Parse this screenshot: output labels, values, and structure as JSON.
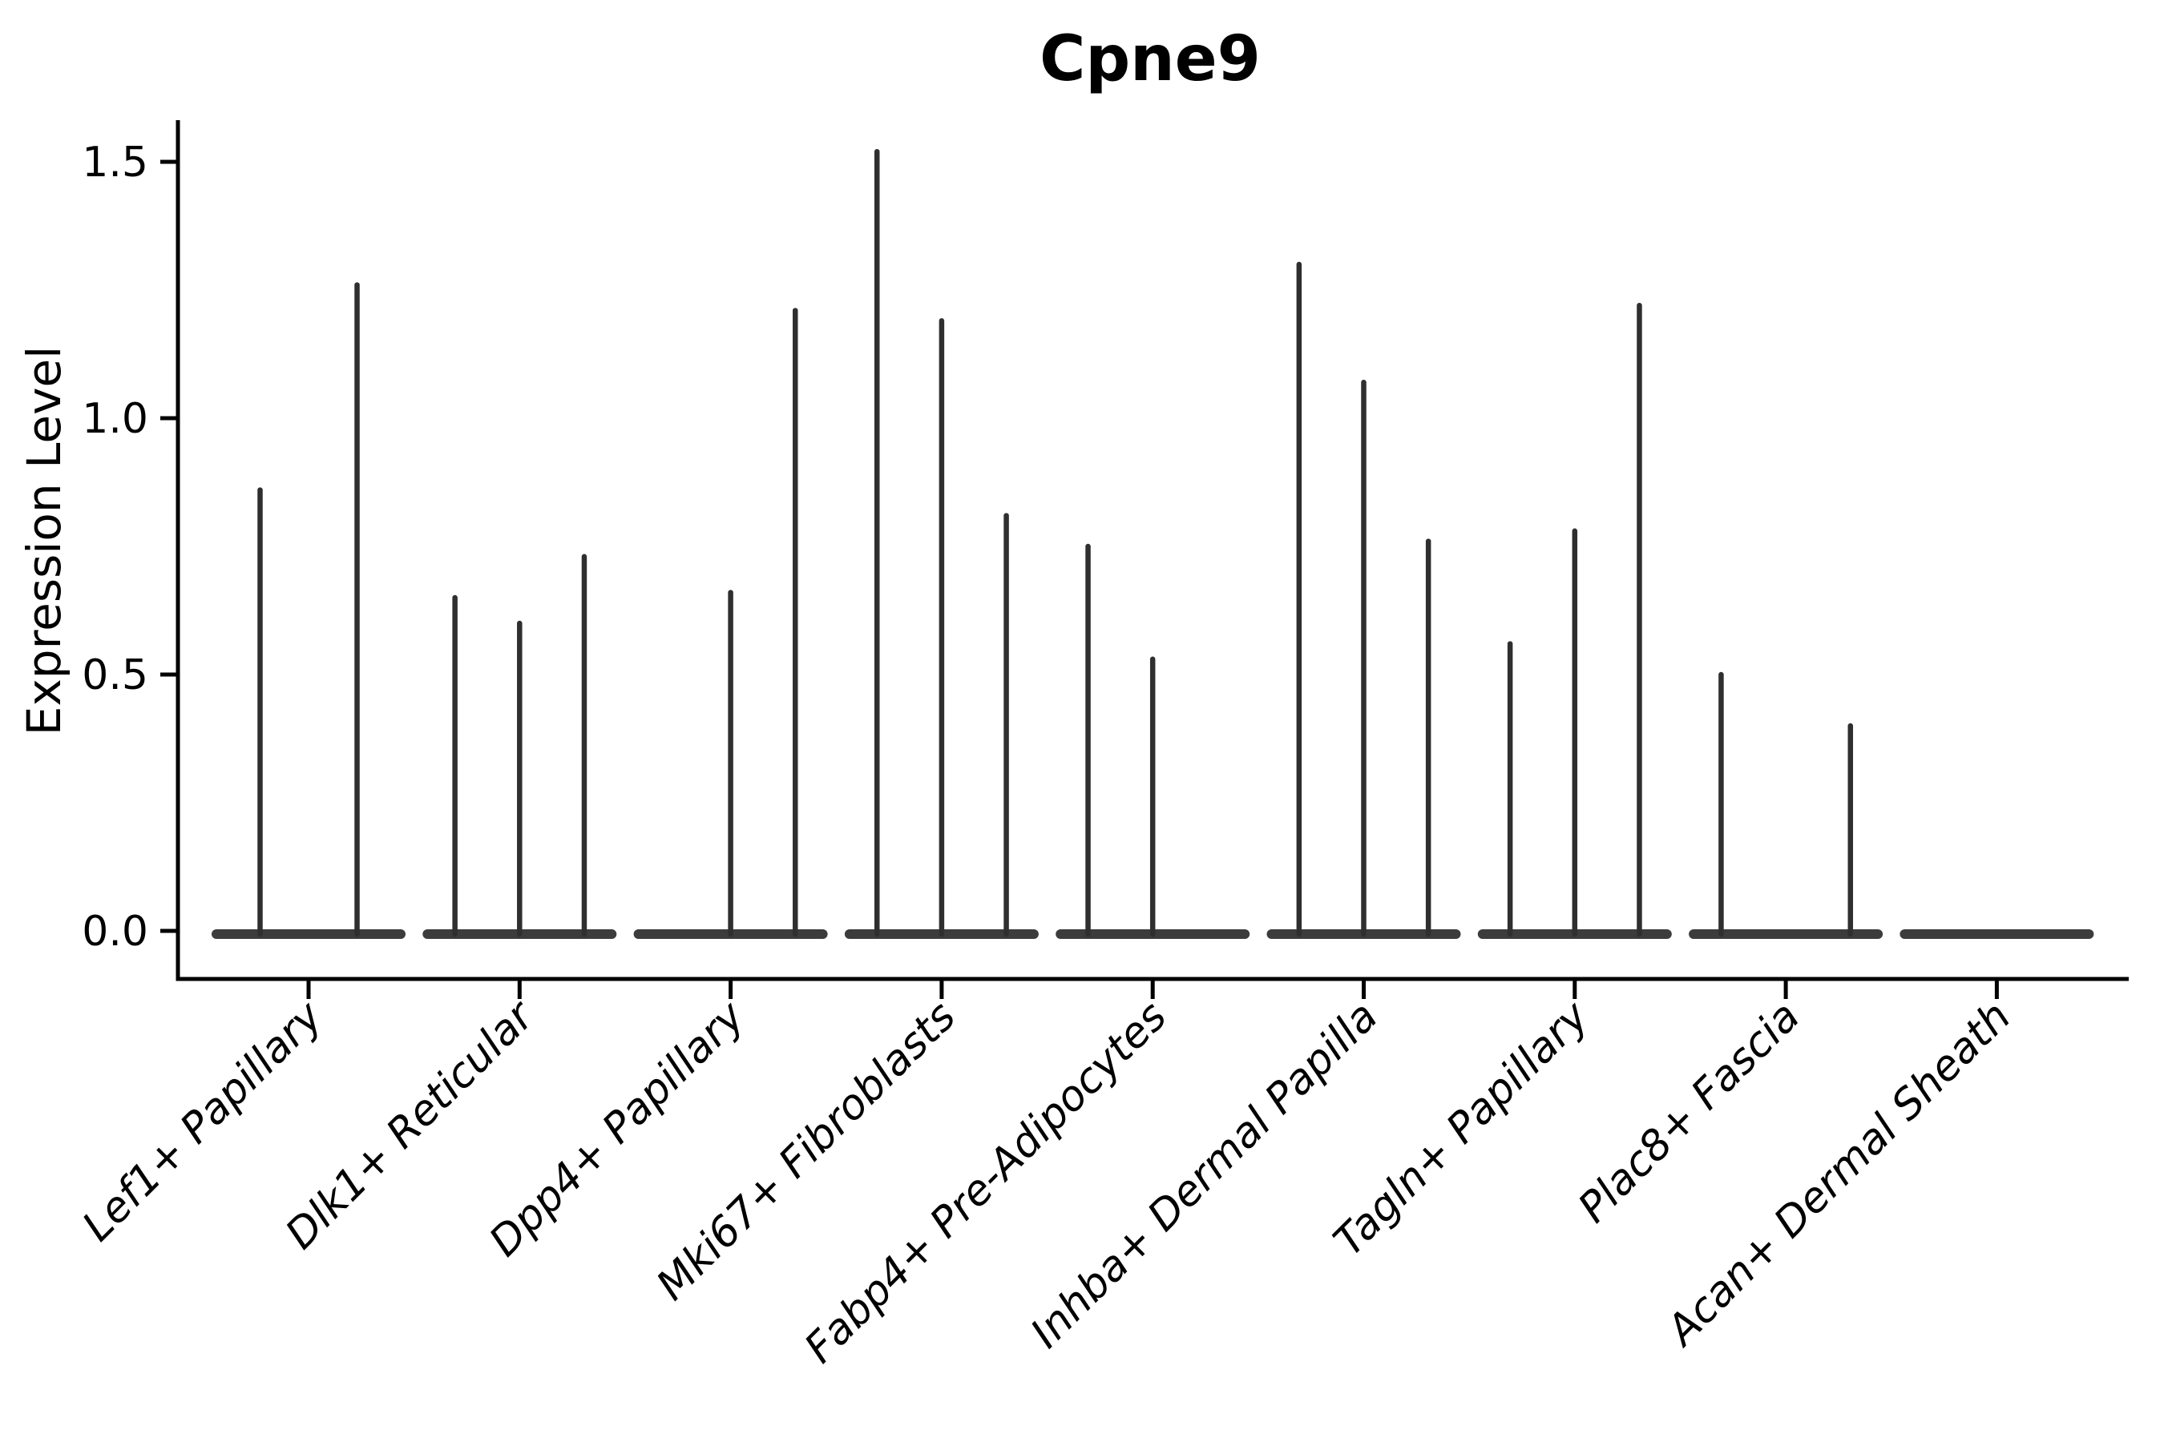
{
  "figure": {
    "background": "#ffffff"
  },
  "colors": {
    "violin_fill": "#3c3c3c",
    "spike": "#2f2f2f",
    "axis": "#000000",
    "text": "#000000"
  },
  "chart_data": {
    "type": "violin",
    "title": "Cpne9",
    "xlabel": "",
    "ylabel": "Expression Level",
    "ylim": [
      0,
      1.58
    ],
    "yticks": [
      0.0,
      0.5,
      1.0,
      1.5
    ],
    "yticklabels": [
      "0.0",
      "0.5",
      "1.0",
      "1.5"
    ],
    "grid": false,
    "legend": null,
    "categories": [
      "Lef1+ Papillary",
      "Dlk1+ Reticular",
      "Dpp4+ Papillary",
      "Mki67+ Fibroblasts",
      "Fabp4+ Pre-Adipocytes",
      "Inhba+ Dermal Papilla",
      "Tagln+ Papillary",
      "Plac8+ Fascia",
      "Acan+ Dermal Sheath"
    ],
    "groups": [
      {
        "category": "Lef1+ Papillary",
        "violin_maxima": [
          0.86,
          1.26
        ]
      },
      {
        "category": "Dlk1+ Reticular",
        "violin_maxima": [
          0.65,
          0.6,
          0.73
        ]
      },
      {
        "category": "Dpp4+ Papillary",
        "violin_maxima": [
          0.0,
          0.66,
          1.21
        ]
      },
      {
        "category": "Mki67+ Fibroblasts",
        "violin_maxima": [
          1.52,
          1.19,
          0.81
        ]
      },
      {
        "category": "Fabp4+ Pre-Adipocytes",
        "violin_maxima": [
          0.75,
          0.53,
          0.0
        ]
      },
      {
        "category": "Inhba+ Dermal Papilla",
        "violin_maxima": [
          1.3,
          1.07,
          0.76
        ]
      },
      {
        "category": "Tagln+ Papillary",
        "violin_maxima": [
          0.56,
          0.78,
          1.22
        ]
      },
      {
        "category": "Plac8+ Fascia",
        "violin_maxima": [
          0.5,
          0.0,
          0.4
        ]
      },
      {
        "category": "Acan+ Dermal Sheath",
        "violin_maxima": [
          0.0,
          0.0,
          0.0
        ]
      }
    ]
  }
}
